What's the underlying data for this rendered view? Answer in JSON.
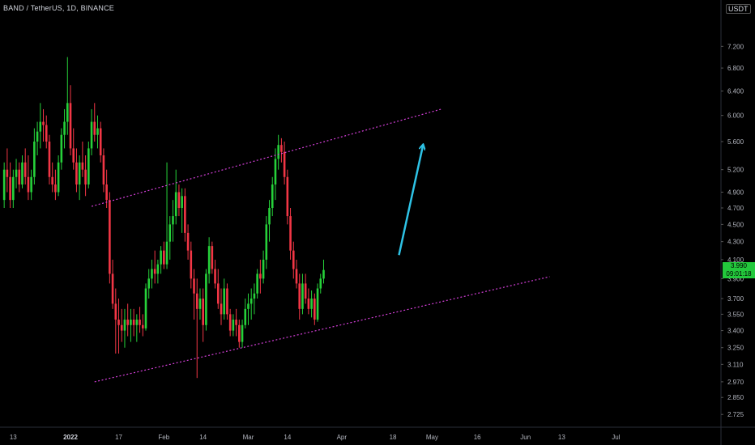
{
  "header": {
    "symbol_title": "BAND / TetherUS, 1D, BINANCE",
    "currency_unit": "USDT"
  },
  "price_badge": {
    "price": "3.990",
    "countdown": "09:01:18"
  },
  "colors": {
    "up": "#26d13a",
    "down": "#f23645",
    "channel": "#d43fd8",
    "arrow": "#2ec3e6",
    "background": "#000000"
  },
  "chart_data": {
    "type": "candlestick",
    "title": "BAND / TetherUS, 1D, BINANCE",
    "y_scale": "log",
    "ylim": [
      2.68,
      8.0
    ],
    "y_ticks": [
      "7.200",
      "6.800",
      "6.400",
      "6.000",
      "5.600",
      "5.200",
      "4.900",
      "4.700",
      "4.500",
      "4.300",
      "4.100",
      "3.900",
      "3.700",
      "3.550",
      "3.400",
      "3.250",
      "3.110",
      "2.970",
      "2.850",
      "2.725"
    ],
    "x_ticks": [
      {
        "label": "13",
        "day": -19,
        "bold": false
      },
      {
        "label": "2022",
        "day": 0,
        "bold": true
      },
      {
        "label": "17",
        "day": 16,
        "bold": false
      },
      {
        "label": "Feb",
        "day": 31,
        "bold": false
      },
      {
        "label": "14",
        "day": 44,
        "bold": false
      },
      {
        "label": "Mar",
        "day": 59,
        "bold": false
      },
      {
        "label": "14",
        "day": 72,
        "bold": false
      },
      {
        "label": "Apr",
        "day": 90,
        "bold": false
      },
      {
        "label": "18",
        "day": 107,
        "bold": false
      },
      {
        "label": "May",
        "day": 120,
        "bold": false
      },
      {
        "label": "16",
        "day": 135,
        "bold": false
      },
      {
        "label": "Jun",
        "day": 151,
        "bold": false
      },
      {
        "label": "13",
        "day": 163,
        "bold": false
      },
      {
        "label": "Jul",
        "day": 181,
        "bold": false
      }
    ],
    "x_axis_note": "day 0 = 2022-01-01",
    "candles_first_day": -22,
    "candles": [
      [
        4.8,
        5.3,
        4.7,
        5.2
      ],
      [
        5.2,
        5.5,
        4.9,
        5.1
      ],
      [
        5.1,
        5.3,
        4.7,
        4.8
      ],
      [
        4.8,
        5.2,
        4.7,
        5.1
      ],
      [
        5.1,
        5.35,
        4.95,
        5.2
      ],
      [
        5.2,
        5.3,
        4.9,
        5.0
      ],
      [
        5.0,
        5.4,
        4.95,
        5.3
      ],
      [
        5.3,
        5.5,
        5.0,
        5.1
      ],
      [
        5.1,
        5.4,
        4.8,
        4.9
      ],
      [
        4.9,
        5.2,
        4.8,
        5.1
      ],
      [
        5.1,
        5.8,
        5.0,
        5.6
      ],
      [
        5.6,
        5.9,
        5.4,
        5.75
      ],
      [
        5.75,
        6.2,
        5.5,
        5.9
      ],
      [
        5.9,
        6.1,
        5.6,
        5.85
      ],
      [
        5.85,
        6.0,
        5.5,
        5.6
      ],
      [
        5.6,
        5.7,
        5.0,
        5.1
      ],
      [
        5.1,
        5.3,
        4.9,
        5.0
      ],
      [
        5.0,
        5.2,
        4.8,
        4.9
      ],
      [
        4.9,
        5.4,
        4.85,
        5.3
      ],
      [
        5.3,
        5.8,
        5.2,
        5.7
      ],
      [
        5.7,
        6.1,
        5.5,
        5.9
      ],
      [
        5.9,
        7.0,
        5.7,
        6.2
      ],
      [
        6.2,
        6.5,
        5.4,
        5.5
      ],
      [
        5.5,
        5.8,
        5.2,
        5.3
      ],
      [
        5.3,
        5.5,
        4.9,
        5.0
      ],
      [
        5.0,
        5.4,
        4.8,
        5.3
      ],
      [
        5.3,
        5.6,
        5.1,
        5.2
      ],
      [
        5.2,
        5.4,
        4.85,
        5.0
      ],
      [
        5.0,
        5.6,
        4.95,
        5.5
      ],
      [
        5.5,
        6.1,
        5.4,
        5.9
      ],
      [
        5.9,
        6.2,
        5.6,
        5.7
      ],
      [
        5.7,
        6.0,
        5.5,
        5.8
      ],
      [
        5.8,
        5.9,
        5.3,
        5.4
      ],
      [
        5.4,
        5.5,
        4.9,
        5.0
      ],
      [
        5.0,
        5.2,
        4.7,
        4.8
      ],
      [
        4.8,
        4.9,
        3.85,
        3.95
      ],
      [
        3.95,
        4.1,
        3.6,
        3.65
      ],
      [
        3.65,
        3.8,
        3.2,
        3.5
      ],
      [
        3.5,
        3.7,
        3.2,
        3.45
      ],
      [
        3.45,
        3.6,
        3.3,
        3.4
      ],
      [
        3.4,
        3.6,
        3.25,
        3.5
      ],
      [
        3.5,
        3.65,
        3.35,
        3.45
      ],
      [
        3.45,
        3.6,
        3.3,
        3.5
      ],
      [
        3.5,
        3.6,
        3.35,
        3.45
      ],
      [
        3.45,
        3.55,
        3.3,
        3.5
      ],
      [
        3.5,
        3.62,
        3.38,
        3.45
      ],
      [
        3.45,
        3.55,
        3.35,
        3.42
      ],
      [
        3.42,
        3.85,
        3.4,
        3.8
      ],
      [
        3.8,
        4.0,
        3.7,
        3.9
      ],
      [
        3.9,
        4.1,
        3.8,
        4.0
      ],
      [
        4.0,
        4.2,
        3.85,
        3.95
      ],
      [
        3.95,
        4.1,
        3.85,
        4.05
      ],
      [
        4.05,
        4.25,
        3.95,
        4.2
      ],
      [
        4.2,
        4.3,
        4.0,
        4.05
      ],
      [
        4.05,
        5.3,
        4.0,
        4.3
      ],
      [
        4.3,
        4.6,
        4.1,
        4.5
      ],
      [
        4.5,
        4.8,
        4.3,
        4.6
      ],
      [
        4.6,
        5.2,
        4.5,
        4.9
      ],
      [
        4.9,
        5.0,
        4.6,
        4.7
      ],
      [
        4.7,
        4.95,
        4.4,
        4.85
      ],
      [
        4.85,
        4.95,
        4.3,
        4.4
      ],
      [
        4.4,
        4.5,
        4.1,
        4.2
      ],
      [
        4.2,
        4.3,
        3.8,
        3.9
      ],
      [
        3.9,
        4.0,
        3.5,
        3.75
      ],
      [
        3.75,
        3.9,
        3.0,
        3.6
      ],
      [
        3.6,
        3.8,
        3.5,
        3.7
      ],
      [
        3.7,
        3.8,
        3.3,
        3.45
      ],
      [
        3.45,
        4.0,
        3.4,
        3.95
      ],
      [
        3.95,
        4.35,
        3.85,
        4.25
      ],
      [
        4.25,
        4.3,
        3.95,
        4.0
      ],
      [
        4.0,
        4.1,
        3.8,
        3.85
      ],
      [
        3.85,
        4.0,
        3.6,
        3.65
      ],
      [
        3.65,
        3.8,
        3.45,
        3.55
      ],
      [
        3.55,
        3.9,
        3.5,
        3.8
      ],
      [
        3.8,
        3.85,
        3.5,
        3.55
      ],
      [
        3.55,
        3.6,
        3.35,
        3.4
      ],
      [
        3.4,
        3.55,
        3.35,
        3.5
      ],
      [
        3.5,
        3.6,
        3.35,
        3.45
      ],
      [
        3.45,
        3.5,
        3.25,
        3.3
      ],
      [
        3.3,
        3.5,
        3.25,
        3.45
      ],
      [
        3.45,
        3.7,
        3.42,
        3.6
      ],
      [
        3.6,
        3.75,
        3.45,
        3.65
      ],
      [
        3.65,
        3.8,
        3.5,
        3.7
      ],
      [
        3.7,
        3.85,
        3.55,
        3.75
      ],
      [
        3.75,
        4.0,
        3.7,
        3.95
      ],
      [
        3.95,
        4.1,
        3.75,
        3.9
      ],
      [
        3.9,
        4.2,
        3.85,
        4.1
      ],
      [
        4.1,
        4.6,
        4.0,
        4.5
      ],
      [
        4.5,
        4.8,
        4.3,
        4.7
      ],
      [
        4.7,
        5.1,
        4.6,
        5.0
      ],
      [
        5.0,
        5.5,
        4.8,
        5.35
      ],
      [
        5.35,
        5.7,
        5.2,
        5.55
      ],
      [
        5.55,
        5.65,
        5.3,
        5.45
      ],
      [
        5.45,
        5.6,
        5.0,
        5.1
      ],
      [
        5.1,
        5.2,
        4.5,
        4.6
      ],
      [
        4.6,
        4.7,
        4.1,
        4.2
      ],
      [
        4.2,
        4.3,
        3.9,
        4.0
      ],
      [
        4.0,
        4.1,
        3.8,
        3.85
      ],
      [
        3.85,
        3.95,
        3.5,
        3.6
      ],
      [
        3.6,
        3.95,
        3.55,
        3.85
      ],
      [
        3.85,
        3.95,
        3.65,
        3.7
      ],
      [
        3.7,
        3.8,
        3.55,
        3.6
      ],
      [
        3.6,
        3.78,
        3.52,
        3.7
      ],
      [
        3.7,
        3.75,
        3.45,
        3.5
      ],
      [
        3.5,
        3.85,
        3.48,
        3.8
      ],
      [
        3.8,
        3.95,
        3.75,
        3.9
      ],
      [
        3.9,
        4.1,
        3.85,
        3.99
      ]
    ],
    "annotations": [
      {
        "type": "channel-upper",
        "from": {
          "day": 7,
          "price": 4.72
        },
        "to": {
          "day": 123,
          "price": 6.1
        }
      },
      {
        "type": "channel-lower",
        "from": {
          "day": 8,
          "price": 2.97
        },
        "to": {
          "day": 159,
          "price": 3.92
        }
      },
      {
        "type": "arrow",
        "from": {
          "day": 109,
          "price": 4.15
        },
        "to": {
          "day": 117,
          "price": 5.55
        }
      }
    ]
  }
}
